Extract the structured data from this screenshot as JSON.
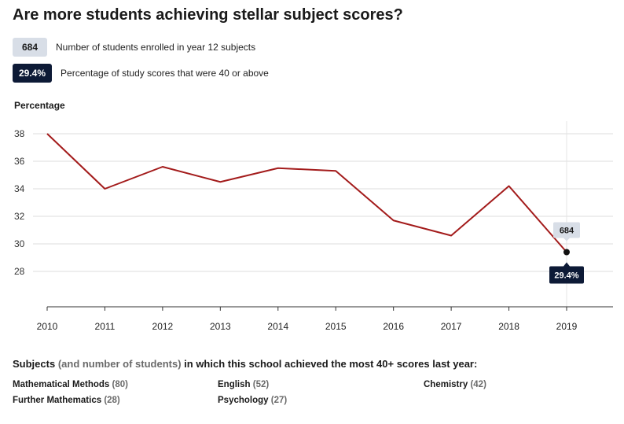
{
  "title": "Are more students achieving stellar subject scores?",
  "legend": [
    {
      "badge": "684",
      "text": "Number of students enrolled in year 12 subjects",
      "style": "light"
    },
    {
      "badge": "29.4%",
      "text": "Percentage of study scores that were 40 or above",
      "style": "dark"
    }
  ],
  "colors": {
    "line": "#a31b1b",
    "dark_badge": "#0d1a36",
    "light_badge": "#d8dee7",
    "grid": "#dddddd"
  },
  "chart_data": {
    "type": "line",
    "title": "Are more students achieving stellar subject scores?",
    "ylabel": "Percentage",
    "xlabel": "",
    "x": [
      "2010",
      "2011",
      "2012",
      "2013",
      "2014",
      "2015",
      "2016",
      "2017",
      "2018",
      "2019"
    ],
    "series": [
      {
        "name": "Percentage of study scores that were 40 or above",
        "values": [
          38.0,
          34.0,
          35.6,
          34.5,
          35.5,
          35.3,
          31.7,
          30.6,
          34.2,
          29.4
        ]
      }
    ],
    "yticks": [
      28,
      30,
      32,
      34,
      36,
      38
    ],
    "ylim": [
      25.5,
      39
    ],
    "grid": true,
    "highlight": {
      "x": "2019",
      "value_label": "29.4%",
      "students_label": "684"
    }
  },
  "subjects": {
    "heading_bold_1": "Subjects",
    "heading_muted": "(and number of students)",
    "heading_bold_2": "in which this school achieved the most 40+ scores last year:",
    "items": [
      {
        "name": "Mathematical Methods",
        "count": "(80)"
      },
      {
        "name": "English",
        "count": "(52)"
      },
      {
        "name": "Chemistry",
        "count": "(42)"
      },
      {
        "name": "Further Mathematics",
        "count": "(28)"
      },
      {
        "name": "Psychology",
        "count": "(27)"
      }
    ]
  }
}
